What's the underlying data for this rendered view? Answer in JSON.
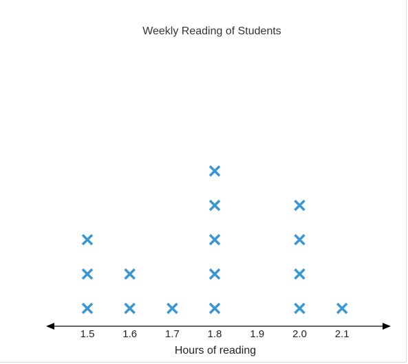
{
  "chart_data": {
    "type": "scatter",
    "subtype": "dot-plot",
    "title": "Weekly Reading of Students",
    "xlabel": "Hours of reading",
    "ylabel": "",
    "x_ticks": [
      "1.5",
      "1.6",
      "1.7",
      "1.8",
      "1.9",
      "2.0",
      "2.1"
    ],
    "marker": "x-icon",
    "marker_color": "#3a97d4",
    "axis_color": "#000000",
    "grid": false,
    "legend": "none",
    "points": [
      {
        "x": 1.5,
        "count": 3
      },
      {
        "x": 1.6,
        "count": 2
      },
      {
        "x": 1.7,
        "count": 1
      },
      {
        "x": 1.8,
        "count": 5
      },
      {
        "x": 1.9,
        "count": 0
      },
      {
        "x": 2.0,
        "count": 4
      },
      {
        "x": 2.1,
        "count": 1
      }
    ]
  }
}
